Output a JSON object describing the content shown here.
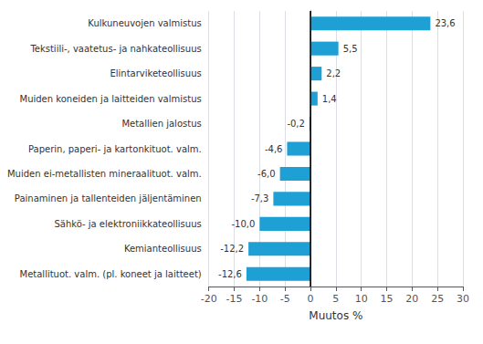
{
  "chart_data": {
    "type": "bar",
    "orientation": "horizontal",
    "categories": [
      "Metallituot. valm. (pl. koneet ja laitteet)",
      "Kemianteollisuus",
      "Sähkö- ja elektroniikkateollisuus",
      "Painaminen ja tallenteiden jäljentäminen",
      "Muiden ei-metallisten mineraalituot. valm.",
      "Paperin, paperi- ja kartonkituot. valm.",
      "Metallien jalostus",
      "Muiden koneiden ja laitteiden valmistus",
      "Elintarviketeollisuus",
      "Tekstiili-, vaatetus- ja nahkateollisuus",
      "Kulkuneuvojen valmistus"
    ],
    "values": [
      -12.6,
      -12.2,
      -10.0,
      -7.3,
      -6.0,
      -4.6,
      -0.2,
      1.4,
      2.2,
      5.5,
      23.6
    ],
    "value_labels": [
      "-12,6",
      "-12,2",
      "-10,0",
      "-7,3",
      "-6,0",
      "-4,6",
      "-0,2",
      "1,4",
      "2,2",
      "5,5",
      "23,6"
    ],
    "color": "#1ea0d4",
    "xlabel": "Muutos %",
    "xlim": [
      -20,
      30
    ],
    "xticks": [
      -20,
      -15,
      -10,
      -5,
      0,
      5,
      10,
      15,
      20,
      25,
      30
    ],
    "grid": true,
    "data_labels": true
  }
}
